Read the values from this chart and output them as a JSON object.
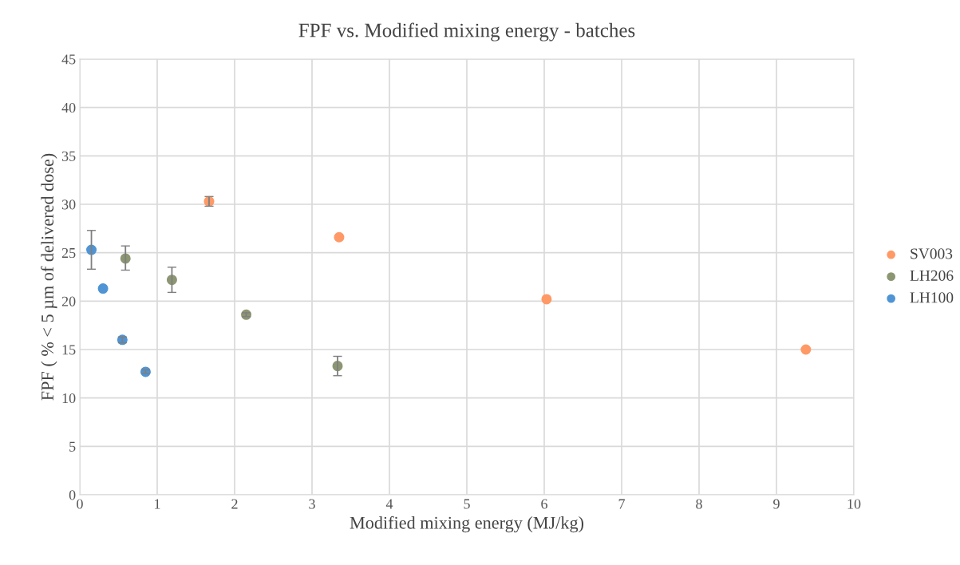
{
  "chart_data": {
    "type": "scatter",
    "title": "FPF vs. Modified mixing energy - batches",
    "xlabel": "Modified mixing energy (MJ/kg)",
    "ylabel": "FPF ( % < 5 µm of delivered dose)",
    "xlim": [
      0,
      10
    ],
    "xticks": [
      0,
      1,
      2,
      3,
      4,
      5,
      6,
      7,
      8,
      9,
      10
    ],
    "ylim": [
      0,
      45
    ],
    "yticks": [
      0,
      5,
      10,
      15,
      20,
      25,
      30,
      35,
      40,
      45
    ],
    "grid": true,
    "legend": "right",
    "marker": "circle",
    "series": [
      {
        "name": "SV003",
        "color": "#ff9966",
        "x": [
          1.67,
          3.35,
          6.03,
          9.38
        ],
        "values": [
          30.3,
          26.6,
          20.2,
          15.0
        ],
        "errors": [
          [
            29.8,
            30.8
          ],
          null,
          null,
          null
        ]
      },
      {
        "name": "LH206",
        "color": "#8c9672",
        "x": [
          0.59,
          1.19,
          2.15,
          3.33
        ],
        "values": [
          24.4,
          22.2,
          18.6,
          13.3
        ],
        "errors": [
          [
            23.2,
            25.7
          ],
          [
            20.9,
            23.5
          ],
          0.2,
          [
            12.3,
            14.3
          ]
        ]
      },
      {
        "name": "LH100",
        "color": "#4f94d4",
        "x": [
          0.15,
          0.3,
          0.55,
          0.85
        ],
        "values": [
          25.3,
          21.3,
          16.0,
          12.7
        ],
        "errors": [
          [
            23.3,
            27.3
          ],
          null,
          0.3,
          0.2
        ]
      }
    ]
  }
}
